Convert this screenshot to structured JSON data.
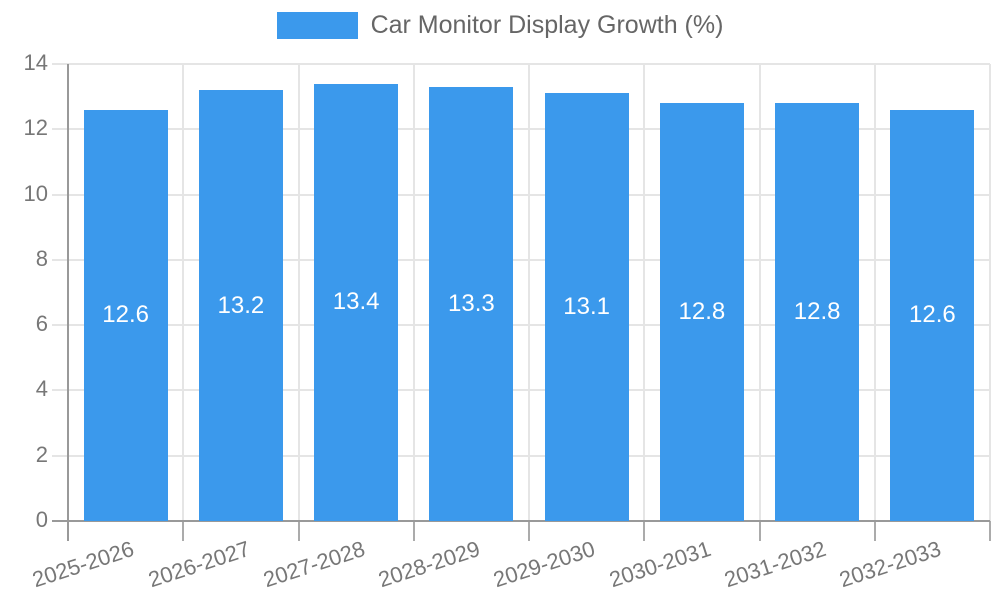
{
  "chart_data": {
    "type": "bar",
    "title": "Car Monitor Display Growth (%)",
    "legend": {
      "position": "top",
      "label": "Car Monitor Display Growth (%)"
    },
    "categories": [
      "2025-2026",
      "2026-2027",
      "2027-2028",
      "2028-2029",
      "2029-2030",
      "2030-2031",
      "2031-2032",
      "2032-2033"
    ],
    "values": [
      12.6,
      13.2,
      13.4,
      13.3,
      13.1,
      12.8,
      12.8,
      12.6
    ],
    "value_label_decimals": 1,
    "xlabel": "",
    "ylabel": "",
    "ylim": [
      0,
      14
    ],
    "yticks": [
      0,
      2,
      4,
      6,
      8,
      10,
      12,
      14
    ],
    "grid": true,
    "x_label_rotation_deg": -18,
    "colors": {
      "bar": "#3B99EC",
      "grid": "#E5E5E5",
      "axis": "#999999",
      "x_tick_mark": "#ABABAB",
      "tick_label": "#777777",
      "legend_text": "#666666",
      "value_label": "#FFFFFF",
      "background": "#FFFFFF"
    }
  }
}
